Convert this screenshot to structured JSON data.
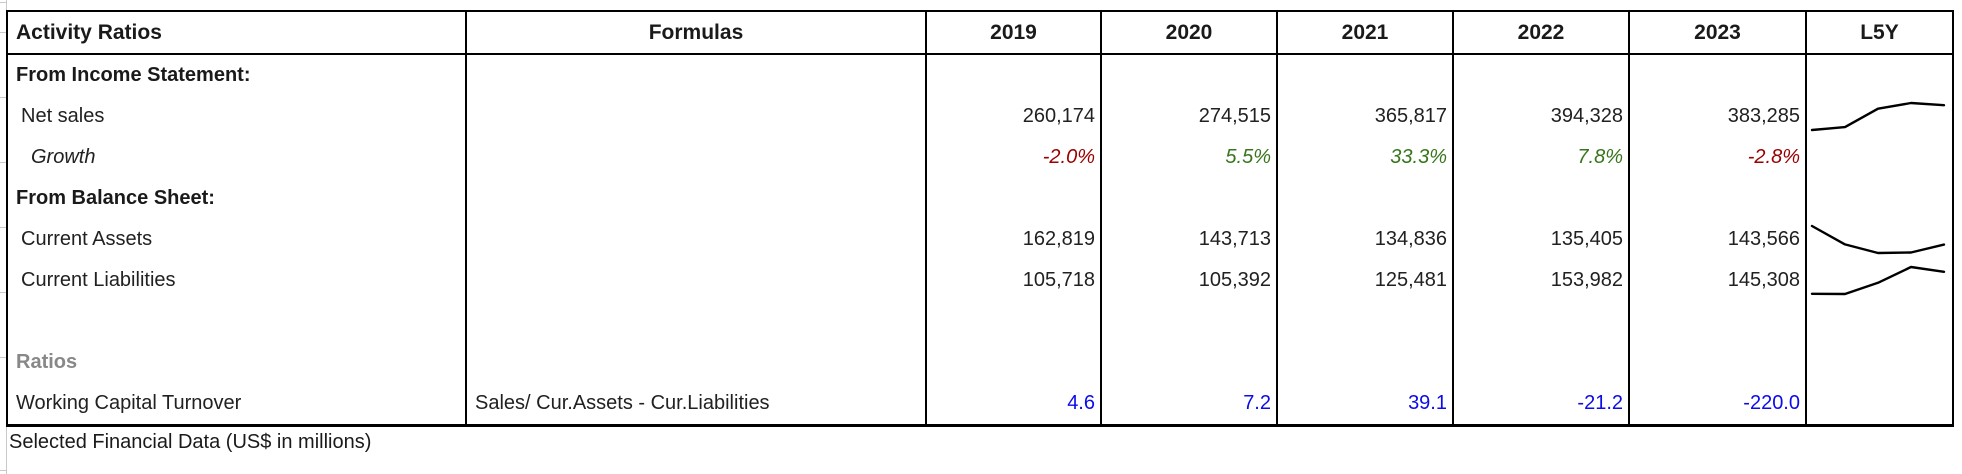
{
  "header": {
    "ratios_col": "Activity Ratios",
    "formulas_col": "Formulas",
    "years": [
      "2019",
      "2020",
      "2021",
      "2022",
      "2023"
    ],
    "trend_col": "L5Y"
  },
  "sections": {
    "income": "From Income Statement:",
    "balance": "From Balance Sheet:",
    "ratios": "Ratios"
  },
  "rows": {
    "net_sales": {
      "label": "Net sales",
      "values": [
        "260,174",
        "274,515",
        "365,817",
        "394,328",
        "383,285"
      ]
    },
    "growth": {
      "label": "Growth",
      "values": [
        "-2.0%",
        "5.5%",
        "33.3%",
        "7.8%",
        "-2.8%"
      ]
    },
    "current_assets": {
      "label": "Current Assets",
      "values": [
        "162,819",
        "143,713",
        "134,836",
        "135,405",
        "143,566"
      ]
    },
    "current_liabilities": {
      "label": "Current Liabilities",
      "values": [
        "105,718",
        "105,392",
        "125,481",
        "153,982",
        "145,308"
      ]
    },
    "working_capital_turnover": {
      "label": "Working Capital Turnover",
      "formula": "Sales/ Cur.Assets - Cur.Liabilities",
      "values": [
        "4.6",
        "7.2",
        "39.1",
        "-21.2",
        "-220.0"
      ]
    }
  },
  "caption": "Selected Financial Data (US$ in millions)",
  "colors": {
    "negative": "#990000",
    "positive": "#38761d",
    "ratio_value": "#0b0beb",
    "section_gray": "#888888",
    "sparkline": "#000000",
    "border": "#000000"
  },
  "chart_data": [
    {
      "type": "line",
      "name": "net-sales-trend-L5Y",
      "x": [
        "2019",
        "2020",
        "2021",
        "2022",
        "2023"
      ],
      "values": [
        260174,
        274515,
        365817,
        394328,
        383285
      ]
    },
    {
      "type": "line",
      "name": "current-assets-trend-L5Y",
      "x": [
        "2019",
        "2020",
        "2021",
        "2022",
        "2023"
      ],
      "values": [
        162819,
        143713,
        134836,
        135405,
        143566
      ]
    },
    {
      "type": "line",
      "name": "current-liabilities-trend-L5Y",
      "x": [
        "2019",
        "2020",
        "2021",
        "2022",
        "2023"
      ],
      "values": [
        105718,
        105392,
        125481,
        153982,
        145308
      ]
    }
  ]
}
